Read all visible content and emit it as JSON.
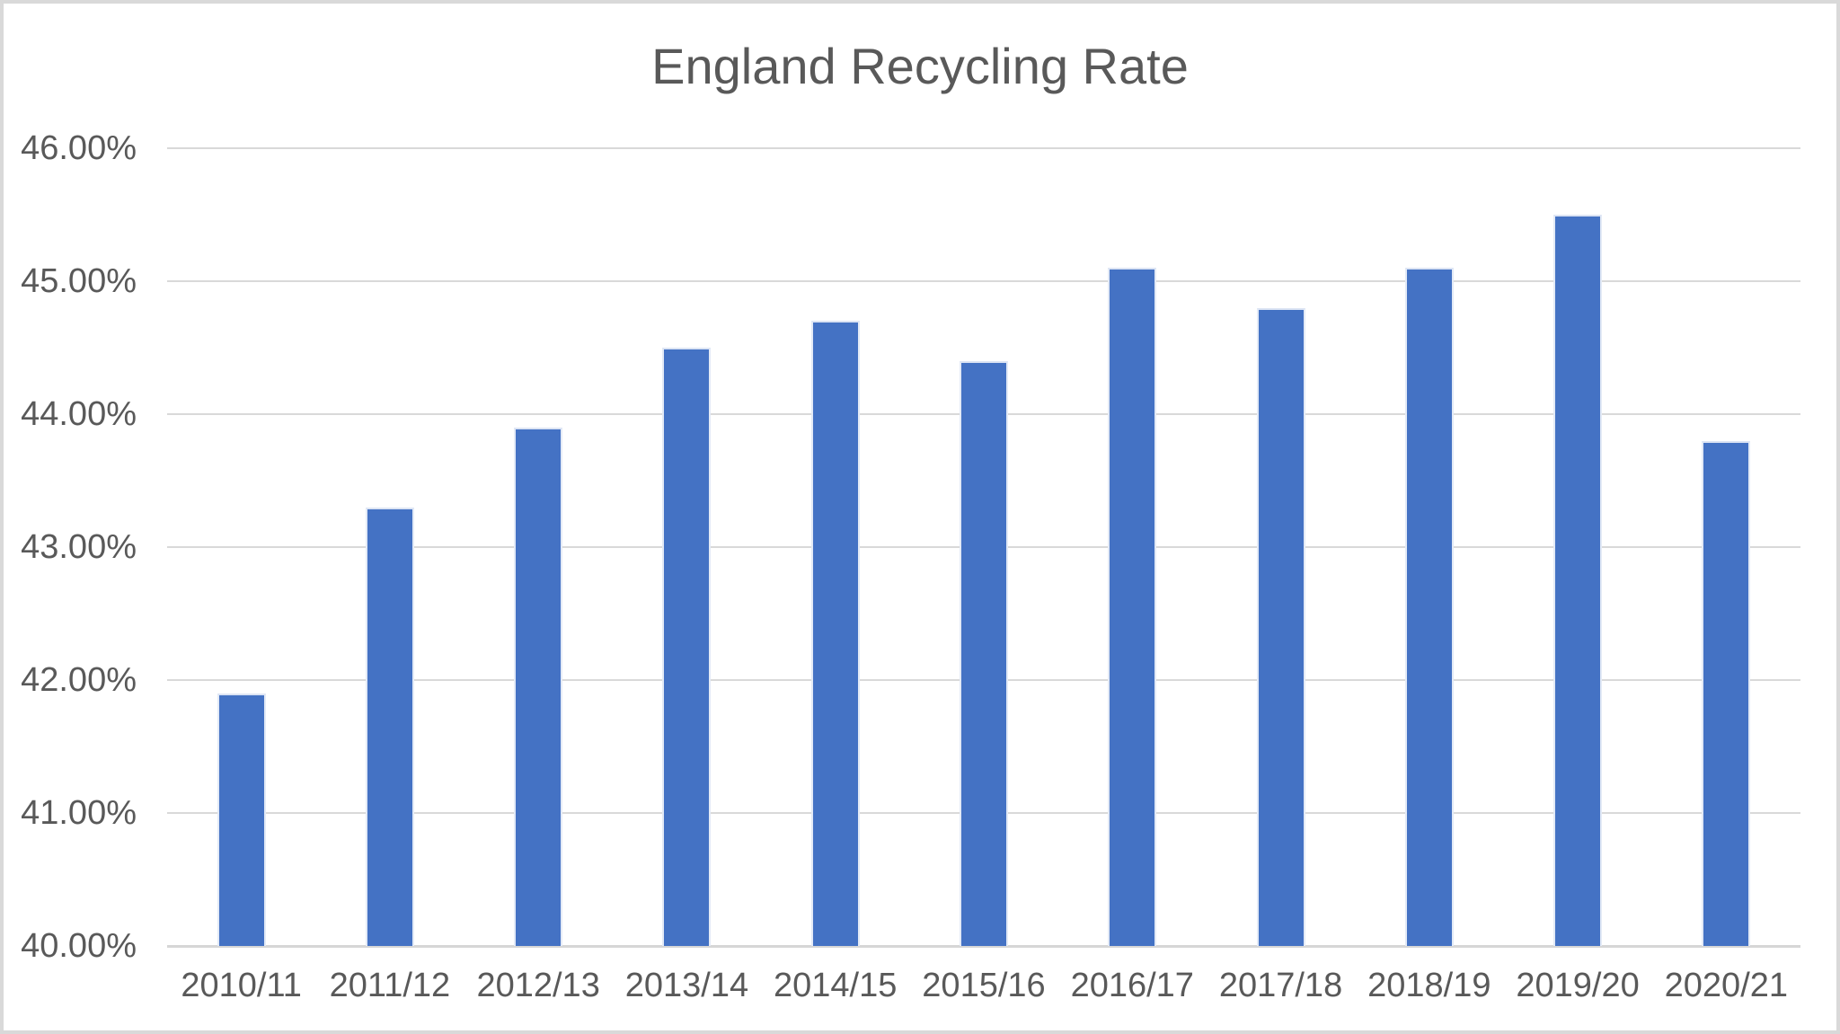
{
  "chart_data": {
    "type": "bar",
    "title": "England Recycling Rate",
    "categories": [
      "2010/11",
      "2011/12",
      "2012/13",
      "2013/14",
      "2014/15",
      "2015/16",
      "2016/17",
      "2017/18",
      "2018/19",
      "2019/20",
      "2020/21"
    ],
    "values": [
      41.9,
      43.3,
      43.9,
      44.5,
      44.7,
      44.4,
      45.1,
      44.8,
      45.1,
      45.5,
      43.8
    ],
    "unit": "%",
    "xlabel": "",
    "ylabel": "",
    "ylim": [
      40,
      46
    ],
    "ytick_step": 1,
    "ytick_labels": [
      "40.00%",
      "41.00%",
      "42.00%",
      "43.00%",
      "44.00%",
      "45.00%",
      "46.00%"
    ],
    "grid": "horizontal",
    "legend": "none",
    "colors": {
      "bar": "#4472C4",
      "bar_edge": "#DCE4F4",
      "title_text": "#595959",
      "axis_text": "#595959",
      "gridline": "#D9D9D9",
      "axis_line": "#D6D6D6",
      "frame_border": "#D9D9D9",
      "background": "#FFFFFF"
    }
  }
}
